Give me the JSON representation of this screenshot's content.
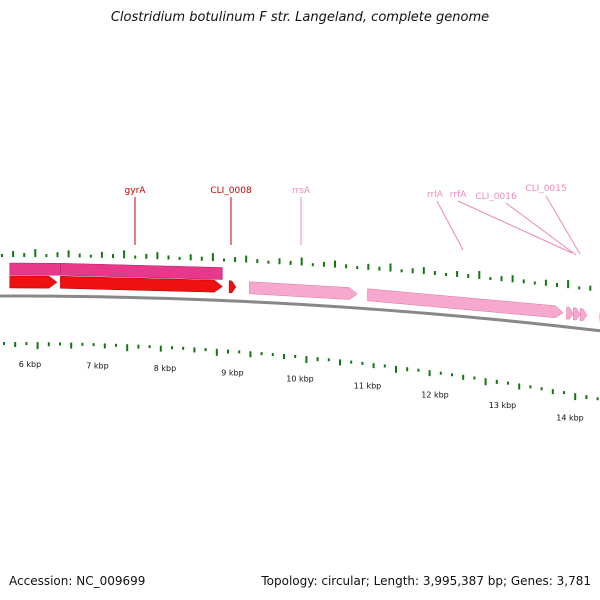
{
  "title": "Clostridium botulinum F str. Langeland, complete genome",
  "footer": {
    "accession": "Accession: NC_009699",
    "summary": "Topology: circular; Length: 3,995,387 bp; Genes: 3,781"
  },
  "colors": {
    "forward_track": "#e8388c",
    "forward_track_light": "#f77dbd",
    "reverse_red": "#ee1111",
    "reverse_pink": "#f7a8cf",
    "gene_label_red": "#cc0000",
    "gene_label_pink": "#ee88bb",
    "tick_green": "#117711",
    "backbone": "#888888"
  },
  "axis": {
    "ticks": [
      {
        "pos_kbp": 6,
        "label": "6 kbp"
      },
      {
        "pos_kbp": 7,
        "label": "7 kbp"
      },
      {
        "pos_kbp": 8,
        "label": "8 kbp"
      },
      {
        "pos_kbp": 9,
        "label": "9 kbp"
      },
      {
        "pos_kbp": 10,
        "label": "10 kbp"
      },
      {
        "pos_kbp": 11,
        "label": "11 kbp"
      },
      {
        "pos_kbp": 12,
        "label": "12 kbp"
      },
      {
        "pos_kbp": 13,
        "label": "13 kbp"
      },
      {
        "pos_kbp": 14,
        "label": "14 kbp"
      }
    ]
  },
  "gene_labels": [
    {
      "name": "gyrA",
      "kbp": 7.6,
      "color": "red"
    },
    {
      "name": "CLI_0008",
      "kbp": 9.0,
      "color": "red"
    },
    {
      "name": "rrsA",
      "kbp": 10.1,
      "color": "pink"
    },
    {
      "name": "rrlA",
      "kbp": 12.45,
      "color": "pink"
    },
    {
      "name": "rrfA",
      "kbp": 13.4,
      "color": "pink"
    },
    {
      "name": "CLI_0016",
      "kbp": 13.5,
      "color": "pink"
    },
    {
      "name": "CLI_0015",
      "kbp": 13.55,
      "color": "pink"
    }
  ],
  "forward_features": [
    {
      "start_kbp": 5.7,
      "end_kbp": 6.45,
      "color": "forward_track"
    },
    {
      "start_kbp": 6.45,
      "end_kbp": 8.85,
      "color": "forward_track"
    }
  ],
  "reverse_features": [
    {
      "start_kbp": 5.7,
      "end_kbp": 6.4,
      "color": "red"
    },
    {
      "start_kbp": 6.45,
      "end_kbp": 8.85,
      "color": "red"
    },
    {
      "start_kbp": 8.95,
      "end_kbp": 9.05,
      "color": "red"
    },
    {
      "start_kbp": 9.25,
      "end_kbp": 10.85,
      "color": "pink"
    },
    {
      "start_kbp": 11.0,
      "end_kbp": 13.9,
      "color": "pink"
    },
    {
      "start_kbp": 13.95,
      "end_kbp": 14.05,
      "color": "pink"
    },
    {
      "start_kbp": 14.05,
      "end_kbp": 14.15,
      "color": "pink"
    },
    {
      "start_kbp": 14.15,
      "end_kbp": 14.25,
      "color": "pink"
    },
    {
      "start_kbp": 14.45,
      "end_kbp": 14.6,
      "color": "red"
    }
  ]
}
